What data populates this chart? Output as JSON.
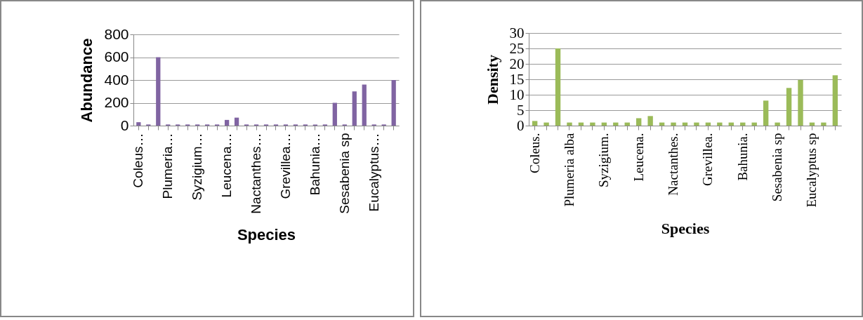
{
  "chart_data": [
    {
      "type": "bar",
      "xlabel": "Species",
      "ylabel": "Abundance",
      "categories": [
        "Coleus…",
        null,
        null,
        "Plumeria…",
        null,
        null,
        "Syzigium…",
        null,
        null,
        "Leucena…",
        null,
        null,
        "Nactanthes…",
        null,
        null,
        "Grevillea…",
        null,
        null,
        "Bahunia…",
        null,
        null,
        "Sesabenia sp",
        null,
        null,
        "Eucalyptus…",
        null,
        null
      ],
      "values": [
        30,
        10,
        600,
        10,
        10,
        10,
        10,
        10,
        10,
        50,
        70,
        10,
        10,
        10,
        10,
        10,
        10,
        10,
        10,
        10,
        200,
        10,
        300,
        360,
        10,
        10,
        400
      ],
      "color": "#8064a2",
      "ylim": [
        0,
        800
      ],
      "yticks": [
        0,
        200,
        400,
        600,
        800
      ],
      "grid": "y"
    },
    {
      "type": "bar",
      "xlabel": "Species",
      "ylabel": "Density",
      "categories": [
        "Coleus.",
        null,
        null,
        "Plumeria alba",
        null,
        null,
        "Syzigium.",
        null,
        null,
        "Leucena.",
        null,
        null,
        "Nactanthes.",
        null,
        null,
        "Grevillea.",
        null,
        null,
        "Bahunia.",
        null,
        null,
        "Sesabenia sp",
        null,
        null,
        "Eucalyptus sp",
        null,
        null
      ],
      "values": [
        1.5,
        1,
        25,
        1,
        1,
        1,
        1,
        1,
        1,
        2.4,
        3.1,
        1,
        1,
        1,
        1,
        1,
        1,
        1,
        1,
        1,
        8.1,
        1,
        12.2,
        14.8,
        1,
        1,
        16.3
      ],
      "color": "#9bbb59",
      "ylim": [
        0,
        30
      ],
      "yticks": [
        0,
        5,
        10,
        15,
        20,
        25,
        30
      ],
      "grid": "y"
    }
  ]
}
